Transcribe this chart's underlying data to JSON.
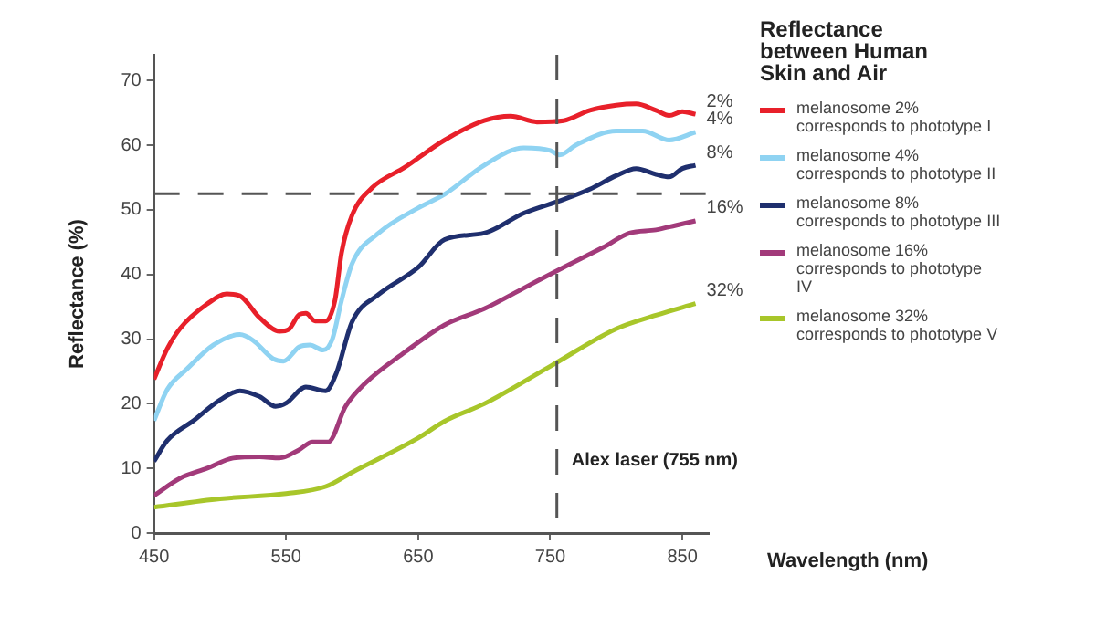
{
  "chart_data": {
    "type": "line",
    "xlabel": "Wavelength (nm)",
    "ylabel": "Reflectance (%)",
    "legend_title": "Reflectance between Human Skin and Air",
    "legend": "right",
    "grid": false,
    "marker": "none",
    "line_style": "solid",
    "xlim": [
      450,
      870
    ],
    "xticks": [
      450,
      550,
      650,
      750,
      850
    ],
    "ylim": [
      0,
      74
    ],
    "yticks": [
      0,
      10,
      20,
      30,
      40,
      50,
      60,
      70
    ],
    "series": [
      {
        "name": "melanosome 2% corresponds to phototype I",
        "color": "#e8202a",
        "x": [
          450,
          460,
          470,
          490,
          505,
          515,
          530,
          545,
          552,
          560,
          565,
          572,
          580,
          587,
          592,
          600,
          615,
          640,
          670,
          700,
          720,
          740,
          760,
          780,
          800,
          815,
          830,
          840,
          850,
          860
        ],
        "values": [
          23.8,
          28.5,
          31.7,
          35.4,
          37,
          36.7,
          33.3,
          31.2,
          31.5,
          33.8,
          34,
          32.8,
          32.8,
          36,
          43.4,
          49.2,
          53.4,
          56.6,
          60.8,
          63.8,
          64.5,
          63.6,
          63.8,
          65.4,
          66.2,
          66.4,
          65.4,
          64.6,
          65.2,
          64.8
        ]
      },
      {
        "name": "melanosome 4% corresponds to phototype II",
        "color": "#8fd3f2",
        "x": [
          450,
          460,
          475,
          495,
          515,
          525,
          540,
          548,
          560,
          568,
          578,
          585,
          592,
          600,
          620,
          650,
          670,
          700,
          730,
          750,
          757,
          770,
          800,
          820,
          840,
          860
        ],
        "values": [
          17.4,
          22.2,
          25.4,
          29.1,
          30.7,
          29.8,
          27,
          26.6,
          28.8,
          29.1,
          28.3,
          30,
          36,
          41.7,
          46.4,
          50.3,
          52.4,
          56.9,
          59.6,
          59.2,
          58.5,
          60.1,
          62.2,
          62.2,
          60.8,
          62
        ]
      },
      {
        "name": "melanosome 8% corresponds to phototype III",
        "color": "#1f2f6e",
        "x": [
          450,
          460,
          480,
          500,
          515,
          530,
          542,
          550,
          565,
          580,
          588,
          600,
          620,
          650,
          670,
          700,
          730,
          760,
          780,
          800,
          815,
          830,
          840,
          850,
          860
        ],
        "values": [
          11.1,
          14.3,
          17.4,
          20.6,
          22,
          21.1,
          19.6,
          20.1,
          22.6,
          22,
          24.7,
          32.7,
          36.9,
          41.1,
          45.4,
          46.4,
          49.5,
          51.6,
          53.2,
          55.3,
          56.4,
          55.5,
          55.1,
          56.4,
          56.9
        ]
      },
      {
        "name": "melanosome 16% corresponds to phototype IV",
        "color": "#a23a7a",
        "x": [
          450,
          470,
          490,
          510,
          530,
          545,
          560,
          570,
          582,
          595,
          610,
          640,
          670,
          700,
          730,
          760,
          790,
          810,
          830,
          845,
          860
        ],
        "values": [
          5.8,
          8.5,
          10,
          11.6,
          11.8,
          11.6,
          12.9,
          14.1,
          14.1,
          19.6,
          23.2,
          28,
          32.2,
          34.7,
          37.9,
          41.1,
          44.2,
          46.4,
          46.9,
          47.6,
          48.3
        ]
      },
      {
        "name": "melanosome 32% corresponds to phototype V",
        "color": "#a8c62a",
        "x": [
          450,
          500,
          550,
          580,
          600,
          650,
          670,
          700,
          750,
          800,
          830,
          860
        ],
        "values": [
          4,
          5.3,
          6.1,
          7.2,
          9.4,
          14.7,
          17.3,
          20,
          25.8,
          31.6,
          33.7,
          35.5
        ]
      }
    ],
    "ref_lines": [
      {
        "axis": "x",
        "value": 755,
        "label": "Alex laser (755 nm)",
        "color": "#555555",
        "line_style": "dashed"
      },
      {
        "axis": "y",
        "value": 52.5,
        "color": "#555555",
        "line_style": "dashed"
      }
    ],
    "annotations": [
      "2%",
      "4%",
      "8%",
      "16%",
      "32%"
    ]
  }
}
